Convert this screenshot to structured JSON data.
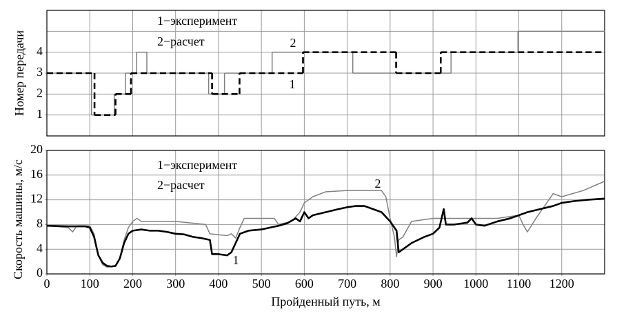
{
  "chart_data": [
    {
      "type": "line",
      "step": true,
      "ylabel": "Номер передачи",
      "xlim": [
        0,
        1300
      ],
      "xgrid_step": 100,
      "ylim": [
        0,
        6
      ],
      "yticks": [
        1,
        2,
        3,
        4
      ],
      "ygrid_step": 1,
      "grid": true,
      "series": [
        {
          "name": "1−эксперимент",
          "label": "1",
          "color": "#000000",
          "dashed": true,
          "x": [
            0,
            111,
            160,
            196,
            385,
            449,
            597,
            814,
            918
          ],
          "values": [
            3,
            1,
            2,
            3,
            2,
            3,
            4,
            3,
            4
          ]
        },
        {
          "name": "2−расчет",
          "label": "2",
          "color": "#808080",
          "dashed": false,
          "x": [
            0,
            104,
            157,
            183,
            209,
            233,
            377,
            414,
            525,
            713,
            942,
            1098
          ],
          "values": [
            3,
            1,
            2,
            3,
            4,
            3,
            2,
            3,
            4,
            3,
            4,
            5
          ]
        }
      ]
    },
    {
      "type": "line",
      "ylabel": "Скорость машины, м/с",
      "xlabel": "Пройденный путь, м",
      "xlim": [
        0,
        1300
      ],
      "xticks": [
        0,
        100,
        200,
        300,
        400,
        500,
        600,
        700,
        800,
        900,
        1000,
        1100,
        1200
      ],
      "xgrid_step": 100,
      "ylim": [
        0,
        20
      ],
      "yticks": [
        0,
        4,
        8,
        12,
        16,
        20
      ],
      "ygrid_step": 4,
      "grid": true,
      "series": [
        {
          "name": "1−эксперимент",
          "label": "1",
          "color": "#000000",
          "dashed": false,
          "x": [
            0,
            50,
            90,
            100,
            110,
            120,
            130,
            140,
            150,
            160,
            170,
            180,
            190,
            200,
            220,
            240,
            260,
            280,
            300,
            320,
            340,
            360,
            380,
            385,
            400,
            420,
            430,
            440,
            450,
            470,
            500,
            520,
            540,
            560,
            580,
            590,
            600,
            610,
            620,
            650,
            680,
            700,
            720,
            740,
            760,
            780,
            800,
            815,
            820,
            830,
            850,
            880,
            900,
            915,
            925,
            930,
            950,
            980,
            990,
            1000,
            1020,
            1050,
            1080,
            1100,
            1120,
            1150,
            1180,
            1200,
            1230,
            1260,
            1300
          ],
          "values": [
            7.8,
            7.7,
            7.7,
            7.5,
            6,
            3,
            1.8,
            1.3,
            1.2,
            1.3,
            2.5,
            5,
            6.5,
            7,
            7.2,
            7,
            7,
            6.8,
            6.5,
            6.4,
            6,
            5.8,
            5.5,
            3.2,
            3.2,
            3,
            3.5,
            5,
            6.5,
            7,
            7.2,
            7.5,
            7.8,
            8.2,
            9,
            8.5,
            10,
            9,
            9.5,
            10,
            10.5,
            10.8,
            11,
            11,
            10.5,
            10,
            8.5,
            7,
            3.5,
            4,
            5,
            6,
            6.5,
            7.5,
            10.5,
            8,
            8,
            8.3,
            9,
            8,
            7.8,
            8.5,
            9,
            9.5,
            10,
            10.5,
            11,
            11.5,
            11.8,
            12,
            12.2
          ]
        },
        {
          "name": "2−расчет",
          "label": "2",
          "color": "#808080",
          "dashed": false,
          "x": [
            0,
            50,
            60,
            70,
            100,
            110,
            120,
            130,
            140,
            160,
            170,
            180,
            190,
            200,
            210,
            220,
            300,
            370,
            380,
            420,
            430,
            440,
            450,
            460,
            530,
            540,
            570,
            590,
            600,
            620,
            650,
            700,
            750,
            780,
            790,
            800,
            810,
            815,
            820,
            830,
            850,
            900,
            1000,
            1050,
            1080,
            1100,
            1110,
            1120,
            1140,
            1160,
            1180,
            1200,
            1250,
            1300
          ],
          "values": [
            7.8,
            7.5,
            6.8,
            7.8,
            7.8,
            6.5,
            3,
            1.5,
            1.1,
            1.2,
            2.5,
            5.5,
            7.5,
            8.5,
            9,
            8.5,
            8.5,
            8,
            6.5,
            6.2,
            6.5,
            5.8,
            7.5,
            9,
            9,
            8,
            8.5,
            10,
            11.5,
            12.5,
            13.3,
            13.5,
            13.5,
            13.5,
            12.5,
            9,
            6,
            2.8,
            5.5,
            6,
            8.5,
            9,
            9,
            9,
            9.3,
            9.5,
            8,
            6.8,
            9,
            11,
            13,
            12.5,
            13.5,
            15
          ]
        }
      ]
    }
  ]
}
